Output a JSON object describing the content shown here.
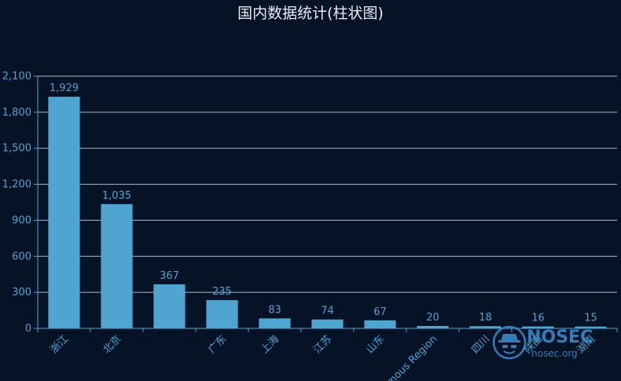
{
  "chart_data": {
    "type": "bar",
    "title": "国内数据统计(柱状图)",
    "categories": [
      "浙江",
      "北京",
      "",
      "广东",
      "上海",
      "江苏",
      "山东",
      "...mous Region",
      "四川",
      "陕西",
      "湖南"
    ],
    "values": [
      1929,
      1035,
      367,
      235,
      83,
      74,
      67,
      20,
      18,
      16,
      15
    ],
    "ylim": [
      0,
      2100
    ],
    "yticks": [
      0,
      300,
      600,
      900,
      1200,
      1500,
      1800,
      2100
    ],
    "ytick_labels": [
      "0",
      "300",
      "600",
      "900",
      "1,200",
      "1,500",
      "1,800",
      "2,100"
    ],
    "value_labels": [
      "1,929",
      "1,035",
      "367",
      "235",
      "83",
      "74",
      "67",
      "20",
      "18",
      "16",
      "15"
    ],
    "grid": true,
    "colors": {
      "bar": "#50a5d0",
      "label": "#4fa4d2",
      "grid": "#cdd8e3",
      "background": "#061225"
    }
  },
  "watermark": {
    "name": "NOSEC",
    "url": "nosec.org",
    "icon": "spy-icon"
  }
}
